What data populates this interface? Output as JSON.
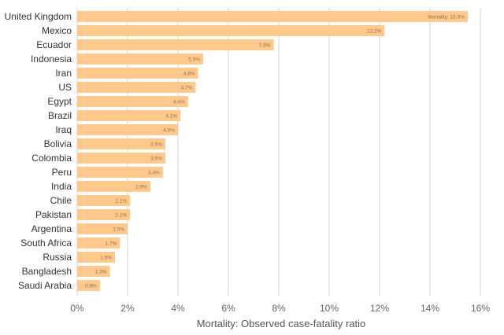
{
  "chart_data": {
    "type": "bar",
    "orientation": "horizontal",
    "title": "",
    "xlabel": "Mortality: Observed case-fatality ratio",
    "ylabel": "",
    "xlim": [
      0,
      16
    ],
    "x_ticks": [
      "0%",
      "2%",
      "4%",
      "6%",
      "8%",
      "10%",
      "12%",
      "14%",
      "16%"
    ],
    "grid": true,
    "legend": "none",
    "bar_color": "#ffc98b",
    "categories": [
      "United Kingdom",
      "Mexico",
      "Ecuador",
      "Indonesia",
      "Iran",
      "US",
      "Egypt",
      "Brazil",
      "Iraq",
      "Bolivia",
      "Colombia",
      "Peru",
      "India",
      "Chile",
      "Pakistan",
      "Argentina",
      "South Africa",
      "Russia",
      "Bangladesh",
      "Saudi Arabia"
    ],
    "values": [
      15.5,
      12.2,
      7.8,
      5.0,
      4.8,
      4.7,
      4.4,
      4.1,
      4.0,
      3.5,
      3.5,
      3.4,
      2.9,
      2.1,
      2.1,
      2.0,
      1.7,
      1.5,
      1.3,
      0.9
    ],
    "data_labels": [
      "Mortality: 15.5%",
      "12.2%",
      "7.8%",
      "5.0%",
      "4.8%",
      "4.7%",
      "4.4%",
      "4.1%",
      "4.0%",
      "3.5%",
      "3.5%",
      "3.4%",
      "2.9%",
      "2.1%",
      "2.1%",
      "2.0%",
      "1.7%",
      "1.5%",
      "1.3%",
      "0.9%"
    ]
  }
}
